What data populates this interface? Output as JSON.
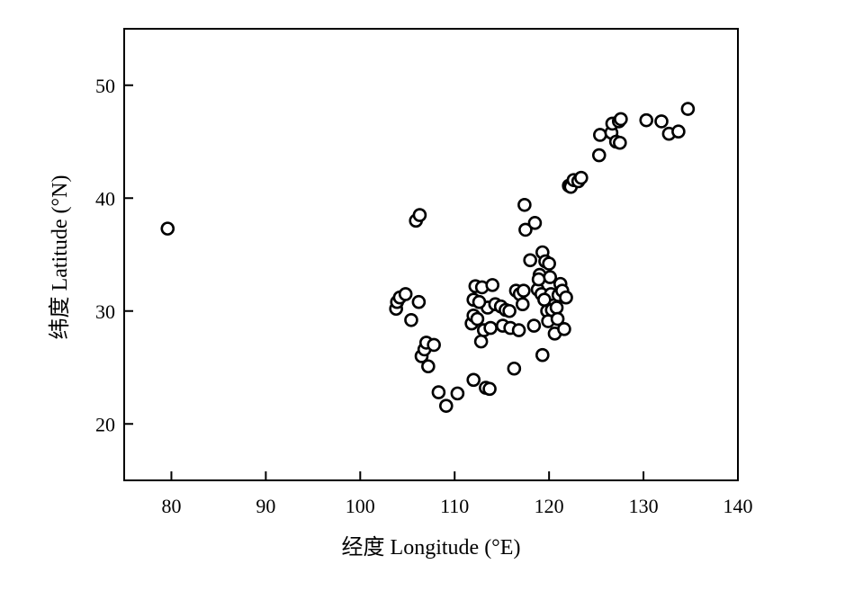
{
  "chart_data": {
    "type": "scatter",
    "xlabel": "经度 Longitude (°E)",
    "ylabel": "纬度 Latitude (°N)",
    "xlim": [
      75,
      140
    ],
    "ylim": [
      15,
      55
    ],
    "xticks": [
      "80",
      "90",
      "100",
      "110",
      "120",
      "130",
      "140"
    ],
    "yticks": [
      "20",
      "30",
      "40",
      "50"
    ],
    "grid": false,
    "marker": "hollow-circle",
    "points": [
      [
        79.6,
        37.3
      ],
      [
        103.8,
        30.2
      ],
      [
        103.9,
        30.8
      ],
      [
        104.2,
        31.2
      ],
      [
        104.8,
        31.5
      ],
      [
        105.4,
        29.2
      ],
      [
        106.2,
        30.8
      ],
      [
        105.9,
        38.0
      ],
      [
        106.3,
        38.5
      ],
      [
        106.5,
        26.0
      ],
      [
        106.8,
        26.6
      ],
      [
        107.0,
        27.2
      ],
      [
        107.2,
        25.1
      ],
      [
        107.8,
        27.0
      ],
      [
        108.3,
        22.8
      ],
      [
        109.1,
        21.6
      ],
      [
        110.3,
        22.7
      ],
      [
        111.8,
        28.9
      ],
      [
        112.0,
        29.6
      ],
      [
        112.0,
        31.0
      ],
      [
        112.2,
        32.2
      ],
      [
        112.4,
        29.3
      ],
      [
        112.8,
        27.3
      ],
      [
        112.9,
        32.1
      ],
      [
        113.1,
        28.3
      ],
      [
        113.3,
        23.2
      ],
      [
        113.5,
        30.3
      ],
      [
        113.7,
        23.1
      ],
      [
        113.8,
        28.5
      ],
      [
        114.0,
        32.3
      ],
      [
        114.3,
        30.6
      ],
      [
        112.0,
        23.9
      ],
      [
        112.6,
        30.8
      ],
      [
        114.9,
        30.4
      ],
      [
        115.1,
        28.7
      ],
      [
        115.4,
        30.1
      ],
      [
        115.8,
        30.0
      ],
      [
        115.9,
        28.5
      ],
      [
        116.3,
        24.9
      ],
      [
        116.5,
        31.8
      ],
      [
        116.8,
        28.3
      ],
      [
        116.9,
        31.5
      ],
      [
        117.2,
        30.6
      ],
      [
        117.3,
        31.8
      ],
      [
        117.4,
        39.4
      ],
      [
        117.5,
        37.2
      ],
      [
        118.0,
        34.5
      ],
      [
        118.4,
        28.7
      ],
      [
        118.5,
        37.8
      ],
      [
        118.8,
        31.9
      ],
      [
        119.0,
        33.2
      ],
      [
        119.2,
        31.5
      ],
      [
        119.3,
        35.2
      ],
      [
        119.3,
        26.1
      ],
      [
        119.6,
        34.4
      ],
      [
        119.8,
        30.0
      ],
      [
        119.9,
        29.1
      ],
      [
        120.0,
        34.2
      ],
      [
        120.1,
        33.0
      ],
      [
        120.2,
        31.5
      ],
      [
        120.3,
        30.1
      ],
      [
        120.6,
        28.0
      ],
      [
        120.8,
        30.3
      ],
      [
        120.9,
        29.3
      ],
      [
        121.0,
        31.4
      ],
      [
        121.2,
        32.4
      ],
      [
        121.4,
        31.8
      ],
      [
        121.6,
        28.4
      ],
      [
        121.8,
        31.2
      ],
      [
        118.9,
        32.8
      ],
      [
        119.5,
        31.0
      ],
      [
        122.1,
        41.1
      ],
      [
        122.3,
        41.0
      ],
      [
        122.6,
        41.6
      ],
      [
        123.1,
        41.5
      ],
      [
        123.4,
        41.8
      ],
      [
        125.3,
        43.8
      ],
      [
        125.4,
        45.6
      ],
      [
        126.6,
        45.8
      ],
      [
        126.7,
        46.6
      ],
      [
        127.1,
        45.0
      ],
      [
        127.4,
        46.8
      ],
      [
        127.5,
        44.9
      ],
      [
        127.6,
        47.0
      ],
      [
        130.3,
        46.9
      ],
      [
        131.9,
        46.8
      ],
      [
        132.7,
        45.7
      ],
      [
        133.7,
        45.9
      ],
      [
        134.7,
        47.9
      ]
    ]
  }
}
